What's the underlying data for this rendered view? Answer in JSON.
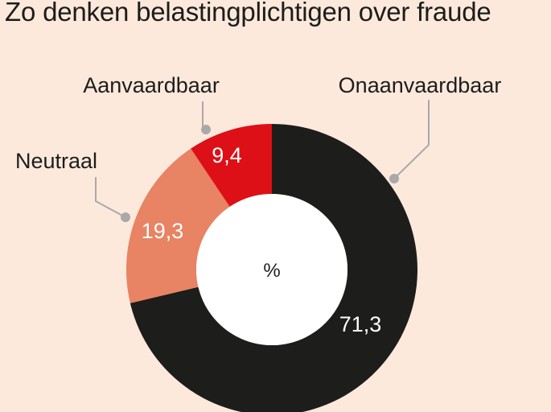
{
  "title": "Zo denken belastingplichtigen over fraude",
  "chart_data": {
    "type": "pie",
    "title": "Zo denken belastingplichtigen over fraude",
    "center_label": "%",
    "categories": [
      "Onaanvaardbaar",
      "Neutraal",
      "Aanvaardbaar"
    ],
    "values": [
      71.3,
      19.3,
      9.4
    ],
    "value_labels": [
      "71,3",
      "19,3",
      "9,4"
    ],
    "colors": [
      "#1d1d1b",
      "#e88363",
      "#dd1017"
    ],
    "legend": "callouts"
  }
}
